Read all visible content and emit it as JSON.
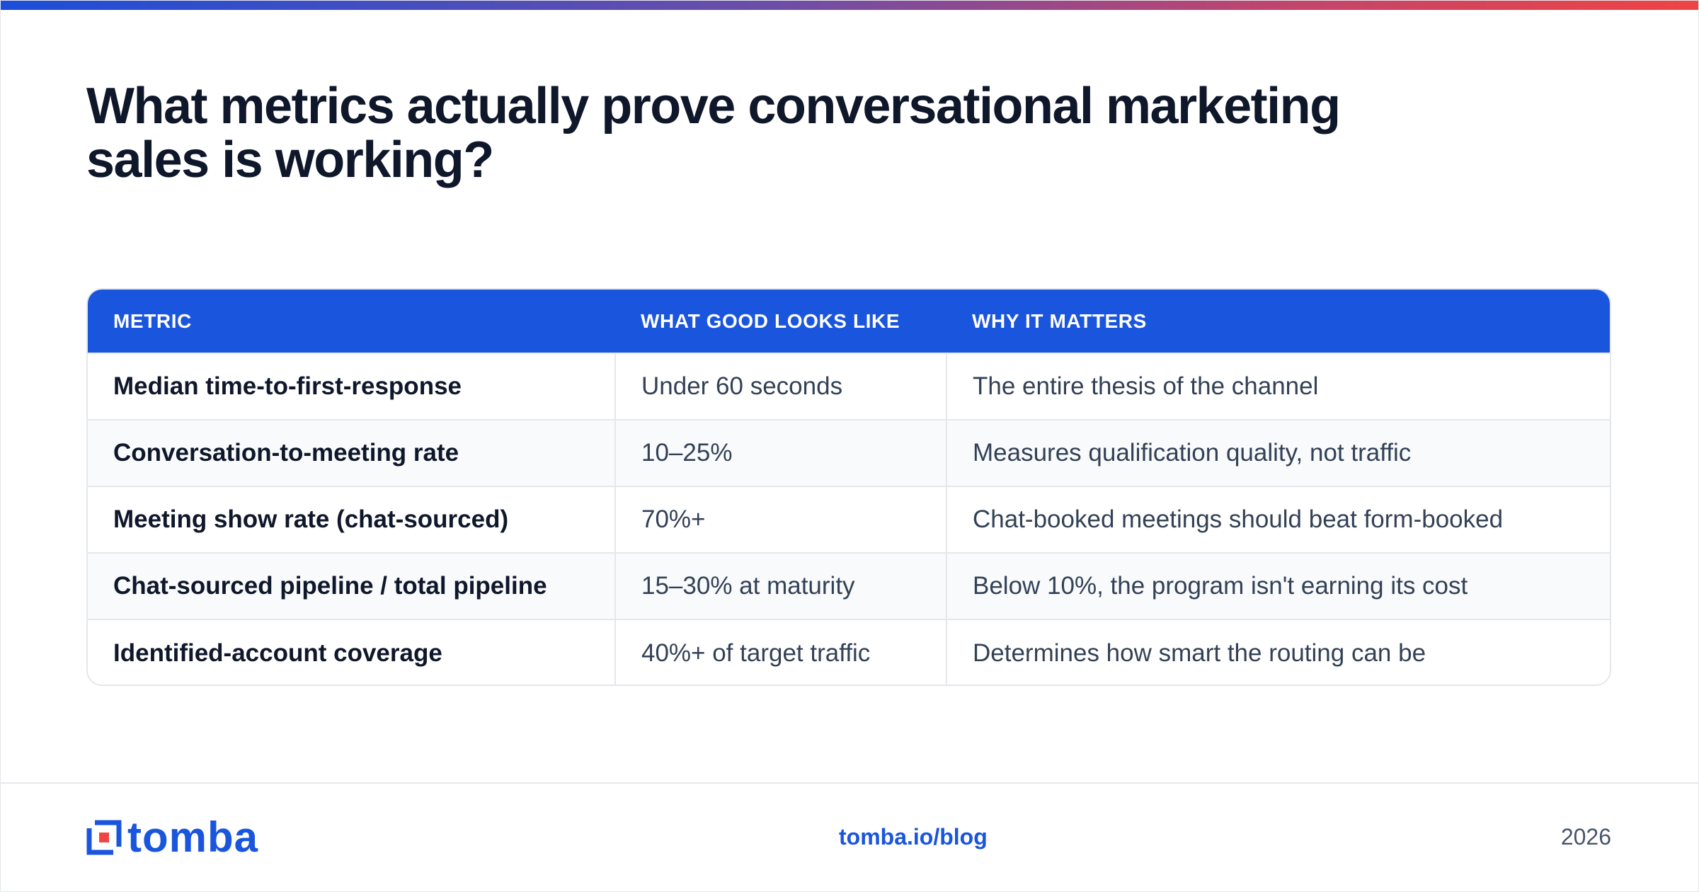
{
  "title": {
    "line1": "What metrics actually prove conversational marketing",
    "line2": "sales is working?"
  },
  "table": {
    "headers": [
      "METRIC",
      "WHAT GOOD LOOKS LIKE",
      "WHY IT MATTERS"
    ],
    "rows": [
      {
        "metric": "Median time-to-first-response",
        "good": "Under 60 seconds",
        "why": "The entire thesis of the channel"
      },
      {
        "metric": "Conversation-to-meeting rate",
        "good": "10–25%",
        "why": "Measures qualification quality, not traffic"
      },
      {
        "metric": "Meeting show rate (chat-sourced)",
        "good": "70%+",
        "why": "Chat-booked meetings should beat form-booked"
      },
      {
        "metric": "Chat-sourced pipeline / total pipeline",
        "good": "15–30% at maturity",
        "why": "Below 10%, the program isn't earning its cost"
      },
      {
        "metric": "Identified-account coverage",
        "good": "40%+ of target traffic",
        "why": "Determines how smart the routing can be"
      }
    ]
  },
  "footer": {
    "logo_text": "tomba",
    "link": "tomba.io/blog",
    "year": "2026"
  },
  "colors": {
    "brand_blue": "#1a55dd",
    "accent_red": "#ef4444",
    "heading": "#0f172a"
  },
  "icons": {
    "logo": "tomba-logo-icon"
  }
}
